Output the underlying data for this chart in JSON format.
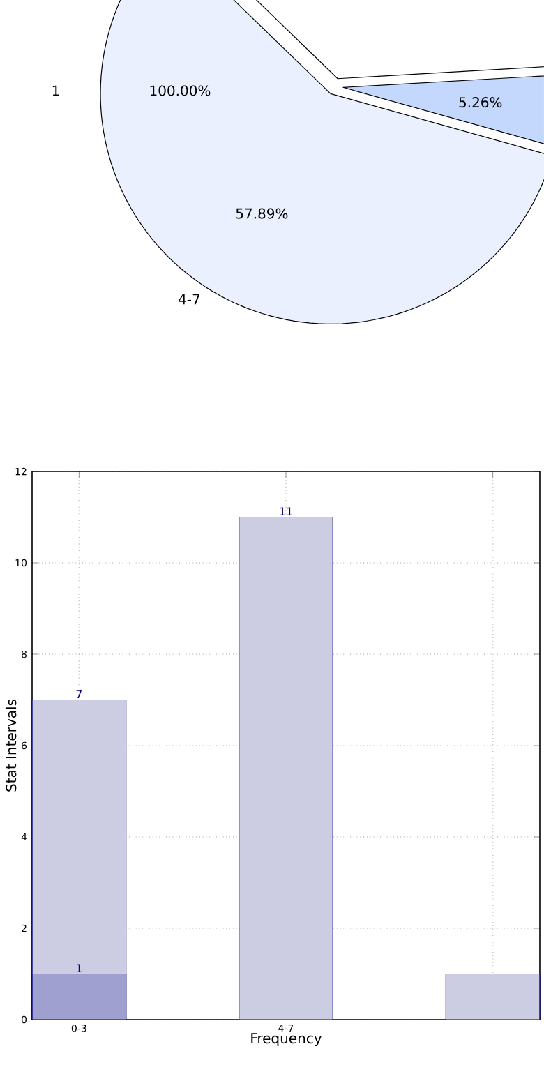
{
  "chart_data": [
    {
      "type": "pie",
      "categories": [
        null,
        "4-7",
        null
      ],
      "values": [
        36.84,
        57.89,
        5.26
      ],
      "colors": [
        "#ffffff",
        "#eaf0fd",
        "#c4d8fe"
      ],
      "value_labels": [
        null,
        "57.89%",
        "5.26%"
      ],
      "annotations": [
        "1",
        "100.00%"
      ]
    },
    {
      "type": "bar",
      "xlabel": "Frequency",
      "ylabel": "Stat Intervals",
      "categories": [
        "0-3",
        "4-7",
        null
      ],
      "series": [
        {
          "color": "#cccce3",
          "values": [
            7,
            11,
            1
          ],
          "value_labels": [
            "7",
            "11",
            null
          ]
        },
        {
          "color": "#a0a0d0",
          "values": [
            1,
            null,
            null
          ],
          "value_labels": [
            "1",
            null,
            null
          ]
        }
      ],
      "ylim": [
        0,
        12
      ],
      "yticks": [
        0,
        2,
        4,
        6,
        8,
        10,
        12
      ],
      "grid": true
    }
  ]
}
